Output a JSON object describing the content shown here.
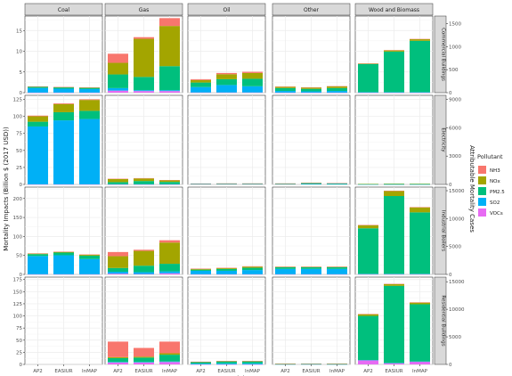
{
  "chart_data": {
    "type": "bar",
    "stacked": true,
    "facet_columns": [
      "Coal",
      "Gas",
      "Oil",
      "Other",
      "Wood and Biomass"
    ],
    "facet_rows": [
      "Commercial Buildings",
      "Electricity",
      "Industrial Boilers",
      "Residential Buildings"
    ],
    "categories": [
      "AP2",
      "EASIUR",
      "InMAP"
    ],
    "xlabel": "Model",
    "ylabel": "Mortality Impacts (Billion $ (2017 USD))",
    "ylabel_right": "Attributable Mortality Cases",
    "legend_title": "Pollutant",
    "legend_position": "right",
    "series": [
      {
        "name": "NH3",
        "color": "#F8766D"
      },
      {
        "name": "NOx",
        "color": "#A3A500"
      },
      {
        "name": "PM2.5",
        "color": "#00BF7D"
      },
      {
        "name": "SO2",
        "color": "#00B0F6"
      },
      {
        "name": "VOCs",
        "color": "#E76BF3"
      }
    ],
    "grid": true,
    "rows": [
      {
        "name": "Commercial Buildings",
        "ylim": [
          0,
          18.5
        ],
        "yticks": [
          0,
          5,
          10,
          15
        ],
        "yticks_right": [
          0,
          500,
          1000,
          1500
        ],
        "cells": [
          [
            [
              0.05,
              0.05,
              0.3,
              1.1,
              0.02
            ],
            [
              0.05,
              0.05,
              0.3,
              0.95,
              0.02
            ],
            [
              0.05,
              0.05,
              0.3,
              0.85,
              0.02
            ]
          ],
          [
            [
              2.2,
              2.8,
              3.3,
              0.6,
              0.5
            ],
            [
              0.4,
              9.2,
              3.2,
              0.2,
              0.4
            ],
            [
              1.9,
              9.7,
              5.8,
              0.2,
              0.4
            ]
          ],
          [
            [
              0.2,
              0.6,
              1.1,
              1.3,
              0.05
            ],
            [
              0.3,
              1.2,
              1.4,
              1.8,
              0.05
            ],
            [
              0.3,
              1.4,
              1.8,
              1.5,
              0.05
            ]
          ],
          [
            [
              0.05,
              0.3,
              0.7,
              0.4,
              0.02
            ],
            [
              0.05,
              0.3,
              0.6,
              0.3,
              0.02
            ],
            [
              0.05,
              0.4,
              0.7,
              0.4,
              0.02
            ]
          ],
          [
            [
              0.05,
              0.1,
              6.8,
              0.1,
              0.02
            ],
            [
              0.05,
              0.3,
              9.8,
              0.1,
              0.02
            ],
            [
              0.05,
              0.4,
              12.4,
              0.1,
              0.02
            ]
          ]
        ]
      },
      {
        "name": "Electricity",
        "ylim": [
          0,
          131
        ],
        "yticks": [
          0,
          25,
          50,
          75,
          100,
          125
        ],
        "yticks_right": [
          0,
          3000,
          6000,
          9000
        ],
        "cells": [
          [
            [
              1,
              8,
              7,
              85,
              0.2
            ],
            [
              1,
              12,
              12,
              94,
              0.2
            ],
            [
              1,
              16,
              12,
              96,
              0.2
            ]
          ],
          [
            [
              0.5,
              4.5,
              3,
              0.3,
              0.1
            ],
            [
              0.5,
              3.8,
              4.6,
              0.3,
              0.1
            ],
            [
              0.5,
              2.3,
              3.3,
              0.3,
              0.1
            ]
          ],
          [
            [
              0.1,
              0.2,
              0.5,
              0.6,
              0
            ],
            [
              0.1,
              0.3,
              0.5,
              0.6,
              0
            ],
            [
              0.1,
              0.3,
              0.5,
              0.6,
              0
            ]
          ],
          [
            [
              0.1,
              0.1,
              0.8,
              0.5,
              0
            ],
            [
              0.1,
              0.2,
              1.3,
              0.8,
              0
            ],
            [
              0.1,
              0.2,
              1,
              0.6,
              0
            ]
          ],
          [
            [
              0,
              0.1,
              0.6,
              0.1,
              0
            ],
            [
              0,
              0.2,
              0.8,
              0.1,
              0
            ],
            [
              0,
              0.2,
              0.7,
              0.1,
              0
            ]
          ]
        ]
      },
      {
        "name": "Industrial Boilers",
        "ylim": [
          0,
          230
        ],
        "yticks": [
          0,
          50,
          100,
          150,
          200
        ],
        "yticks_right": [
          0,
          5000,
          10000,
          15000
        ],
        "cells": [
          [
            [
              0.5,
              1.5,
              5,
              48,
              0.5
            ],
            [
              0.5,
              2,
              7,
              50,
              0.5
            ],
            [
              0.5,
              2.5,
              9,
              40,
              0.5
            ]
          ],
          [
            [
              11,
              31,
              10,
              5,
              2
            ],
            [
              3,
              39,
              17,
              5,
              1
            ],
            [
              6,
              56,
              20,
              5,
              3
            ]
          ],
          [
            [
              1,
              2,
              3,
              9,
              0.5
            ],
            [
              1,
              2,
              5,
              9,
              0.5
            ],
            [
              1,
              3,
              6,
              11,
              0.5
            ]
          ],
          [
            [
              0.5,
              0.5,
              5,
              14,
              0.5
            ],
            [
              0.5,
              0.5,
              5,
              14,
              0.5
            ],
            [
              0.5,
              0.5,
              5,
              14,
              0.5
            ]
          ],
          [
            [
              1,
              8,
              120,
              1,
              0.5
            ],
            [
              1,
              13,
              205,
              1,
              0.5
            ],
            [
              1,
              13,
              162,
              1,
              0.5
            ]
          ]
        ]
      },
      {
        "name": "Residential Buildings",
        "ylim": [
          0,
          180
        ],
        "yticks": [
          0,
          25,
          50,
          75,
          100,
          125,
          150,
          175
        ],
        "yticks_right": [
          0,
          5000,
          10000,
          15000
        ],
        "cells": [
          [
            [],
            [],
            []
          ],
          [
            [
              32,
              2,
              8,
              1,
              4
            ],
            [
              18,
              2,
              9,
              1,
              4
            ],
            [
              24,
              3,
              14,
              1,
              5
            ]
          ],
          [
            [
              0.5,
              0.5,
              3,
              1.5,
              0.2
            ],
            [
              0.5,
              0.5,
              4,
              2,
              0.2
            ],
            [
              0.5,
              0.5,
              4,
              2,
              0.2
            ]
          ],
          [
            [
              0.1,
              0.1,
              1,
              0.3,
              0
            ],
            [
              0.1,
              0.1,
              1.2,
              0.4,
              0
            ],
            [
              0.1,
              0.1,
              1.1,
              0.3,
              0
            ]
          ],
          [
            [
              0.5,
              3.5,
              91,
              0.5,
              8.5
            ],
            [
              0.5,
              3.5,
              159,
              0.5,
              2.5
            ],
            [
              0.5,
              3.5,
              118,
              0.5,
              5.5
            ]
          ]
        ]
      }
    ]
  }
}
